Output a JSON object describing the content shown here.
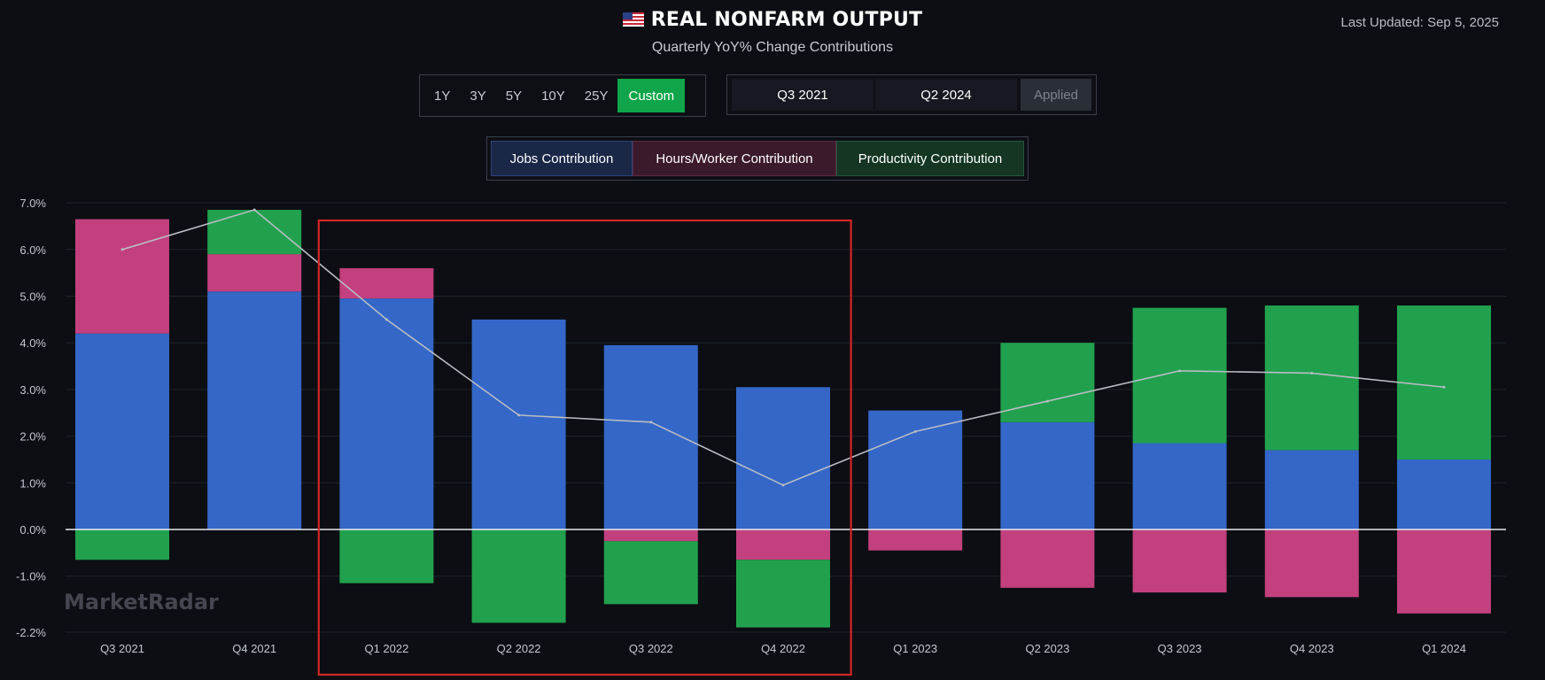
{
  "header": {
    "title": "REAL NONFARM OUTPUT",
    "subtitle": "Quarterly YoY% Change Contributions",
    "last_updated": "Last Updated: Sep 5, 2025"
  },
  "range_buttons": [
    "1Y",
    "3Y",
    "5Y",
    "10Y",
    "25Y",
    "Custom"
  ],
  "active_range": "Custom",
  "date_range": {
    "start": "Q3 2021",
    "end": "Q2 2024",
    "apply_label": "Applied"
  },
  "legend": {
    "jobs": "Jobs Contribution",
    "hours": "Hours/Worker Contribution",
    "productivity": "Productivity Contribution"
  },
  "watermark": "MarketRadar",
  "colors": {
    "jobs": "#3467c8",
    "hours": "#c2407e",
    "productivity": "#21a14d",
    "total_line": "#b9bcc4",
    "highlight_box": "#d32626",
    "active_button": "#10a54a"
  },
  "chart_data": {
    "type": "bar",
    "stacked": true,
    "categories": [
      "Q3 2021",
      "Q4 2021",
      "Q1 2022",
      "Q2 2022",
      "Q3 2022",
      "Q4 2022",
      "Q1 2023",
      "Q2 2023",
      "Q3 2023",
      "Q4 2023",
      "Q1 2024"
    ],
    "series": [
      {
        "name": "Jobs Contribution",
        "values": [
          4.2,
          5.1,
          4.95,
          4.5,
          3.95,
          3.05,
          2.55,
          2.3,
          1.85,
          1.7,
          1.5
        ]
      },
      {
        "name": "Hours/Worker Contribution",
        "values": [
          2.45,
          0.8,
          0.65,
          0.0,
          -0.25,
          -0.65,
          -0.45,
          -1.25,
          -1.35,
          -1.45,
          -1.8
        ]
      },
      {
        "name": "Productivity Contribution",
        "values": [
          -0.65,
          0.95,
          -1.15,
          -2.0,
          -1.35,
          -1.45,
          0.0,
          1.7,
          2.9,
          3.1,
          3.3
        ]
      }
    ],
    "total_line": [
      6.0,
      6.85,
      4.5,
      2.45,
      2.3,
      0.95,
      2.1,
      2.75,
      3.4,
      3.35,
      3.05
    ],
    "y_ticks": [
      "7.0%",
      "6.0%",
      "5.0%",
      "4.0%",
      "3.0%",
      "2.0%",
      "1.0%",
      "0.0%",
      "-1.0%",
      "-2.2%"
    ],
    "ylim": [
      -2.2,
      7.0
    ],
    "grid": true,
    "highlight_range": [
      "Q1 2022",
      "Q4 2022"
    ]
  }
}
